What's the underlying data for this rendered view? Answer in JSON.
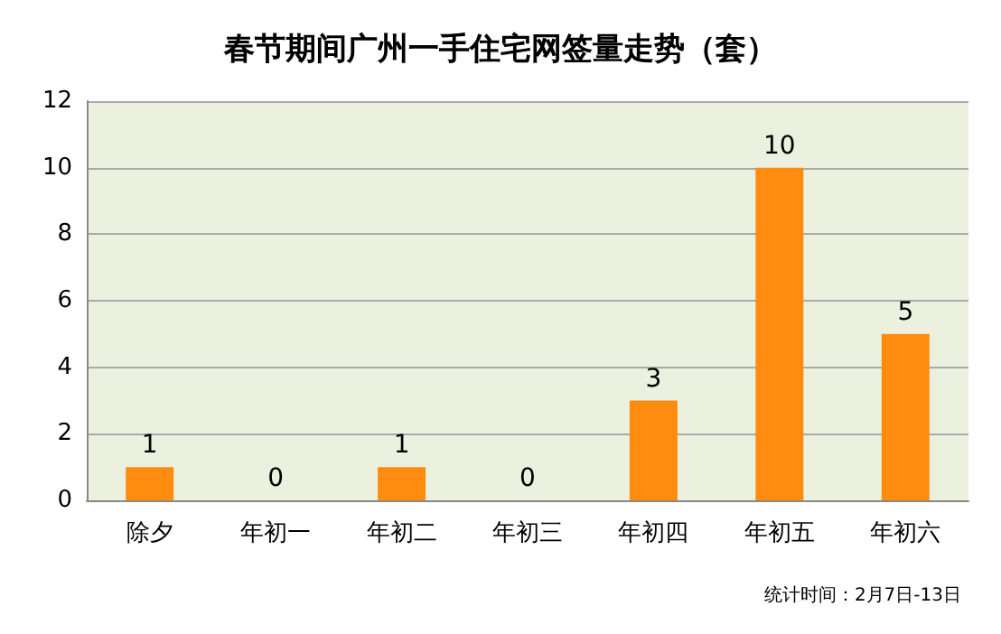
{
  "chart_data": {
    "type": "bar",
    "title": "春节期间广州一手住宅网签量走势（套）",
    "categories": [
      "除夕",
      "年初一",
      "年初二",
      "年初三",
      "年初四",
      "年初五",
      "年初六"
    ],
    "values": [
      1,
      0,
      1,
      0,
      3,
      10,
      5
    ],
    "color": "#ff8c0f",
    "ylim": [
      0,
      12
    ],
    "yticks": [
      0,
      2,
      4,
      6,
      8,
      10,
      12
    ],
    "grid": "y",
    "data_labels": true,
    "annotations": [
      "统计时间：2月7日-13日"
    ]
  }
}
